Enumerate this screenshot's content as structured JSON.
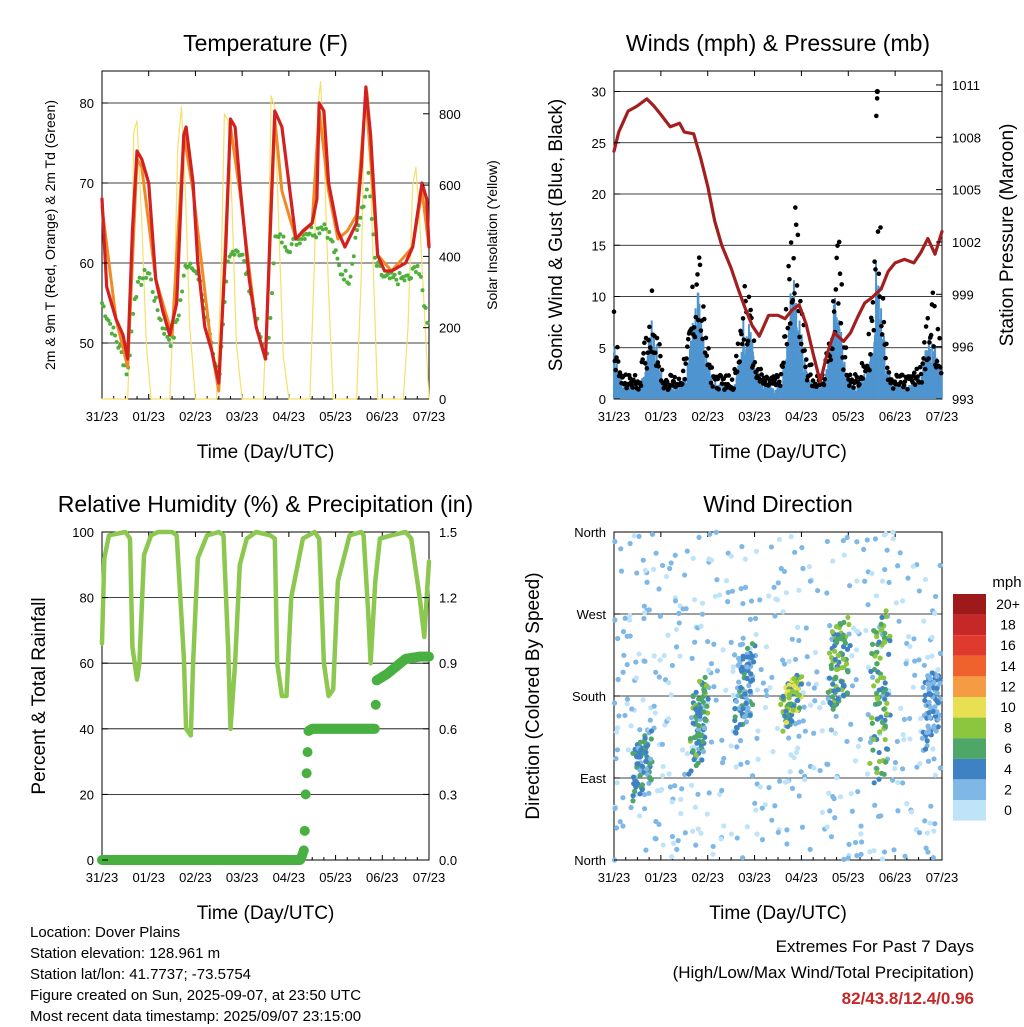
{
  "x_tick_labels": [
    "31/23",
    "01/23",
    "02/23",
    "03/23",
    "04/23",
    "05/23",
    "06/23",
    "07/23"
  ],
  "footer": {
    "location": "Location: Dover Plains",
    "elevation": "Station elevation: 128.961 m",
    "latlon": "Station lat/lon: 41.7737; -73.5754",
    "created": "Figure created on Sun, 2025-09-07, at 23:50 UTC",
    "recent": "Most recent data timestamp: 2025/09/07 23:15:00"
  },
  "extremes": {
    "title": "Extremes For Past 7 Days",
    "subtitle": "(High/Low/Max Wind/Total Precipitation)",
    "values": "82/43.8/12.4/0.96"
  },
  "colors": {
    "temperature": "#d32020",
    "temperature_9m": "#f08a24",
    "dewpoint": "#4fb03c",
    "insolation": "#f5e06a",
    "gust": "#000000",
    "wind": "#4f95d0",
    "pressure": "#a31f1f",
    "humidity": "#8cc850",
    "precip": "#48b040"
  },
  "chart_data": [
    {
      "type": "line",
      "title": "Temperature (F)",
      "xlabel": "Time (Day/UTC)",
      "ylabel": "2m & 9m T (Red, Orange) & 2m Td (Green)",
      "y2label": "Solar Insolation (Yellow)",
      "ylim": [
        43,
        84
      ],
      "y_ticks": [
        50,
        60,
        70,
        80
      ],
      "y2lim": [
        0,
        920
      ],
      "y2_ticks": [
        0,
        200,
        400,
        600,
        800
      ],
      "xlim": [
        0,
        7
      ],
      "series": [
        {
          "name": "2m T (Red)",
          "x": [
            0,
            0.1,
            0.3,
            0.45,
            0.55,
            0.65,
            0.75,
            0.85,
            1.0,
            1.15,
            1.3,
            1.45,
            1.6,
            1.75,
            1.8,
            1.95,
            2.05,
            2.2,
            2.35,
            2.5,
            2.65,
            2.75,
            2.85,
            2.95,
            3.15,
            3.3,
            3.5,
            3.6,
            3.7,
            3.85,
            4.0,
            4.15,
            4.3,
            4.5,
            4.6,
            4.65,
            4.75,
            4.85,
            5.05,
            5.2,
            5.45,
            5.55,
            5.65,
            5.75,
            5.9,
            6.05,
            6.2,
            6.5,
            6.65,
            6.75,
            6.85,
            6.95,
            7.0
          ],
          "y": [
            68,
            57,
            53,
            51,
            48,
            64,
            74,
            73,
            70,
            58,
            54,
            51,
            55,
            76,
            77,
            70,
            60,
            52,
            49,
            45,
            62,
            78,
            77,
            70,
            58,
            52,
            48,
            64,
            79,
            77,
            70,
            63,
            64,
            65,
            68,
            80,
            79,
            70,
            64,
            62,
            65,
            72,
            82,
            76,
            61,
            59,
            59,
            60,
            62,
            66,
            70,
            68,
            62
          ]
        },
        {
          "name": "9m T (Orange)",
          "x": [
            0,
            0.3,
            0.55,
            0.75,
            0.85,
            1.15,
            1.5,
            1.75,
            1.95,
            2.35,
            2.5,
            2.75,
            2.95,
            3.3,
            3.5,
            3.7,
            3.85,
            4.15,
            4.5,
            4.65,
            4.85,
            5.05,
            5.25,
            5.45,
            5.65,
            5.9,
            6.2,
            6.65,
            6.85,
            7.0
          ],
          "y": [
            67,
            53,
            47,
            73,
            72,
            58,
            51,
            76,
            69,
            49,
            44,
            77,
            69,
            52,
            48,
            78,
            69,
            63,
            65,
            79,
            69,
            63,
            64,
            66,
            81,
            61,
            59,
            62,
            69,
            62
          ]
        },
        {
          "name": "2m Td (Green)",
          "x": [
            0,
            0.2,
            0.4,
            0.55,
            0.7,
            0.85,
            1.0,
            1.15,
            1.3,
            1.5,
            1.65,
            1.8,
            1.95,
            2.15,
            2.35,
            2.5,
            2.7,
            2.85,
            3.0,
            3.2,
            3.4,
            3.55,
            3.7,
            3.85,
            4.0,
            4.2,
            4.4,
            4.6,
            4.75,
            4.9,
            5.1,
            5.3,
            5.45,
            5.6,
            5.7,
            5.85,
            6.05,
            6.2,
            6.4,
            6.6,
            6.75,
            6.9,
            7.0
          ],
          "y": [
            55,
            52,
            49,
            46,
            56,
            58,
            59,
            55,
            52,
            50,
            54,
            60,
            60,
            56,
            50,
            45,
            60,
            62,
            61,
            56,
            50,
            48,
            63,
            63,
            62,
            63,
            64,
            64,
            65,
            63,
            59,
            58,
            64,
            67,
            71,
            60,
            58,
            58,
            58,
            58,
            60,
            55,
            52
          ]
        },
        {
          "name": "Solar Insolation (Yellow)",
          "x": [
            0,
            0.15,
            0.28,
            0.4,
            0.55,
            0.62,
            0.68,
            0.75,
            0.85,
            0.95,
            1.05,
            1.25,
            1.45,
            1.55,
            1.62,
            1.7,
            1.78,
            1.88,
            2.0,
            2.25,
            2.45,
            2.55,
            2.62,
            2.7,
            2.78,
            2.88,
            3.0,
            3.25,
            3.45,
            3.55,
            3.62,
            3.7,
            3.78,
            3.88,
            4.0,
            4.25,
            4.45,
            4.55,
            4.62,
            4.68,
            4.75,
            4.85,
            4.95,
            5.25,
            5.45,
            5.55,
            5.62,
            5.7,
            5.8,
            5.9,
            6.25,
            6.45,
            6.55,
            6.65,
            6.72,
            6.8,
            6.9,
            7.0
          ],
          "y": [
            0,
            0,
            0,
            0,
            0,
            300,
            750,
            780,
            500,
            150,
            0,
            0,
            0,
            300,
            700,
            820,
            600,
            200,
            0,
            0,
            0,
            350,
            800,
            780,
            550,
            150,
            0,
            0,
            0,
            320,
            850,
            820,
            500,
            120,
            0,
            0,
            0,
            400,
            820,
            890,
            700,
            300,
            0,
            0,
            0,
            350,
            830,
            860,
            400,
            0,
            0,
            0,
            200,
            600,
            650,
            500,
            250,
            0
          ]
        }
      ]
    },
    {
      "type": "line",
      "title": "Winds (mph) & Pressure (mb)",
      "xlabel": "Time (Day/UTC)",
      "ylabel": "Sonic Wind & Gust (Blue, Black)",
      "y2label": "Station Pressure (Maroon)",
      "ylim": [
        0,
        32
      ],
      "y_ticks": [
        0,
        5,
        10,
        15,
        20,
        25,
        30
      ],
      "y2lim": [
        993,
        1011.8
      ],
      "y2_ticks": [
        993,
        996,
        999,
        1002,
        1005,
        1008,
        1011
      ],
      "xlim": [
        0,
        7
      ],
      "series": [
        {
          "name": "Station Pressure (Maroon)",
          "x": [
            0,
            0.1,
            0.3,
            0.5,
            0.7,
            0.85,
            1.0,
            1.2,
            1.4,
            1.5,
            1.7,
            1.85,
            2.0,
            2.15,
            2.3,
            2.5,
            2.65,
            2.8,
            2.95,
            3.1,
            3.3,
            3.5,
            3.65,
            3.8,
            3.95,
            4.1,
            4.25,
            4.4,
            4.55,
            4.7,
            4.9,
            5.05,
            5.2,
            5.35,
            5.5,
            5.7,
            5.85,
            6.0,
            6.2,
            6.4,
            6.55,
            6.7,
            6.85,
            7.0
          ],
          "y": [
            1007.2,
            1008.3,
            1009.5,
            1009.8,
            1010.2,
            1009.8,
            1009.3,
            1008.6,
            1008.8,
            1008.3,
            1008.2,
            1006.8,
            1005.2,
            1003.2,
            1001.8,
            1000.5,
            999.3,
            998.2,
            997.2,
            996.6,
            997.8,
            997.8,
            997.6,
            998.1,
            998.4,
            997.3,
            995.6,
            994.0,
            995.6,
            996.8,
            996.3,
            996.8,
            997.7,
            998.5,
            998.8,
            999.3,
            1000.3,
            1000.8,
            1001.0,
            1000.8,
            1001.4,
            1002.2,
            1001.3,
            1002.6
          ]
        },
        {
          "name": "Sonic Wind (Blue)",
          "x": [
            0,
            0.1,
            0.2,
            0.35,
            0.55,
            0.7,
            0.8,
            0.9,
            1.05,
            1.2,
            1.4,
            1.55,
            1.7,
            1.8,
            1.9,
            2.05,
            2.2,
            2.4,
            2.55,
            2.7,
            2.8,
            2.9,
            3.05,
            3.2,
            3.4,
            3.55,
            3.7,
            3.8,
            3.95,
            4.1,
            4.3,
            4.45,
            4.6,
            4.7,
            4.8,
            4.9,
            5.05,
            5.2,
            5.4,
            5.55,
            5.62,
            5.7,
            5.8,
            5.95,
            6.15,
            6.35,
            6.55,
            6.7,
            6.8,
            6.9,
            7.0
          ],
          "y": [
            4,
            2,
            1,
            1,
            1,
            3,
            6,
            4,
            1,
            1,
            1,
            2,
            6,
            8,
            5,
            2,
            1,
            1,
            1,
            3,
            7,
            5,
            2,
            1,
            1,
            1,
            4,
            9,
            6,
            2,
            1,
            1,
            3,
            7,
            6,
            3,
            1,
            1,
            2,
            5,
            12,
            7,
            3,
            1,
            1,
            1,
            2,
            4,
            5,
            3,
            2
          ]
        },
        {
          "name": "Gust (Black)",
          "x": [
            0,
            0.1,
            0.2,
            0.35,
            0.55,
            0.7,
            0.8,
            0.9,
            1.05,
            1.2,
            1.4,
            1.55,
            1.7,
            1.8,
            1.9,
            2.05,
            2.2,
            2.4,
            2.55,
            2.7,
            2.8,
            2.9,
            3.05,
            3.2,
            3.4,
            3.55,
            3.7,
            3.8,
            3.95,
            4.1,
            4.3,
            4.45,
            4.6,
            4.7,
            4.8,
            4.9,
            5.05,
            5.2,
            5.4,
            5.55,
            5.62,
            5.7,
            5.8,
            5.95,
            6.15,
            6.35,
            6.55,
            6.7,
            6.8,
            6.9,
            7.0
          ],
          "y": [
            8,
            3,
            2,
            2,
            2,
            6,
            10,
            7,
            2,
            2,
            2,
            4,
            11,
            14,
            8,
            3,
            2,
            2,
            2,
            6,
            11,
            8,
            3,
            2,
            2,
            2,
            9,
            20,
            13,
            4,
            2,
            2,
            5,
            12,
            15,
            6,
            2,
            2,
            4,
            10,
            30,
            12,
            5,
            2,
            2,
            2,
            3,
            7,
            9,
            6,
            4
          ]
        }
      ]
    },
    {
      "type": "line",
      "title": "Relative Humidity (%) & Precipitation (in)",
      "xlabel": "Time (Day/UTC)",
      "ylabel": "Percent & Total Rainfall",
      "ylim": [
        0,
        100
      ],
      "y_ticks": [
        0,
        20,
        40,
        60,
        80,
        100
      ],
      "y2lim": [
        0,
        1.5
      ],
      "y2_ticks": [
        "0.0",
        "0.3",
        "0.6",
        "0.9",
        "1.2",
        "1.5"
      ],
      "xlim": [
        0,
        7
      ],
      "series": [
        {
          "name": "Relative Humidity",
          "x": [
            0,
            0.05,
            0.15,
            0.5,
            0.6,
            0.65,
            0.75,
            0.8,
            0.9,
            1.05,
            1.2,
            1.5,
            1.6,
            1.75,
            1.8,
            1.9,
            1.95,
            2.05,
            2.25,
            2.5,
            2.6,
            2.7,
            2.75,
            2.85,
            2.95,
            3.1,
            3.3,
            3.6,
            3.7,
            3.75,
            3.85,
            3.95,
            4.05,
            4.3,
            4.55,
            4.65,
            4.75,
            4.85,
            4.95,
            5.05,
            5.3,
            5.55,
            5.6,
            5.7,
            5.75,
            5.85,
            5.95,
            6.2,
            6.5,
            6.62,
            6.7,
            6.8,
            6.9,
            6.95,
            7.0
          ],
          "y": [
            66,
            92,
            99,
            100,
            98,
            65,
            55,
            60,
            93,
            99,
            100,
            100,
            99,
            62,
            40,
            38,
            60,
            92,
            99,
            100,
            99,
            65,
            40,
            60,
            90,
            98,
            100,
            99,
            98,
            60,
            50,
            50,
            80,
            98,
            100,
            98,
            60,
            50,
            52,
            85,
            99,
            100,
            99,
            75,
            60,
            85,
            98,
            99,
            100,
            98,
            90,
            80,
            68,
            80,
            91
          ]
        },
        {
          "name": "Total Rainfall",
          "x": [
            0,
            4.25,
            4.33,
            4.36,
            4.42,
            4.5,
            5.85,
            5.87,
            6.1,
            6.5,
            6.8,
            7.0
          ],
          "y": [
            0,
            0,
            0.05,
            0.3,
            0.59,
            0.6,
            0.6,
            0.82,
            0.85,
            0.92,
            0.93,
            0.93
          ]
        }
      ]
    },
    {
      "type": "scatter",
      "title": "Wind Direction",
      "xlabel": "Time (Day/UTC)",
      "ylabel": "Direction (Colored By Speed)",
      "y_tick_labels": [
        "North",
        "East",
        "South",
        "West",
        "North"
      ],
      "ylim": [
        0,
        360
      ],
      "xlim": [
        0,
        7
      ],
      "legend_title": "mph",
      "legend_labels": [
        "20+",
        "18",
        "16",
        "14",
        "12",
        "10",
        "8",
        "6",
        "4",
        "2",
        "0"
      ],
      "legend_colors": [
        "#9e1a1a",
        "#c62828",
        "#e0392e",
        "#f0622d",
        "#f59b44",
        "#e8df52",
        "#8cc63f",
        "#4ea768",
        "#3e82c4",
        "#7fb8e6",
        "#bfe3f8"
      ],
      "legend_placement": "right",
      "centers": [
        {
          "x": 0.6,
          "y": 105,
          "spread": 30,
          "speed": 4
        },
        {
          "x": 1.8,
          "y": 150,
          "spread": 45,
          "speed": 5
        },
        {
          "x": 2.8,
          "y": 190,
          "spread": 40,
          "speed": 4
        },
        {
          "x": 3.8,
          "y": 175,
          "spread": 25,
          "speed": 7
        },
        {
          "x": 4.8,
          "y": 215,
          "spread": 45,
          "speed": 6
        },
        {
          "x": 5.7,
          "y": 180,
          "spread": 90,
          "speed": 6
        },
        {
          "x": 6.8,
          "y": 170,
          "spread": 40,
          "speed": 3
        }
      ]
    }
  ]
}
